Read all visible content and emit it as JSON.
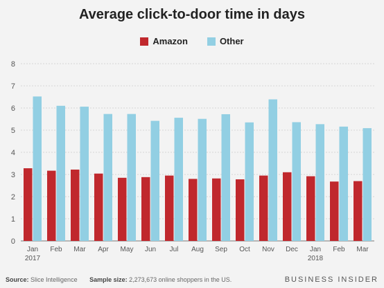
{
  "footer": {
    "source_label": "Source:",
    "source_value": "Slice Intelligence",
    "sample_label": "Sample size:",
    "sample_value": "2,273,673 online shoppers in the US.",
    "brand": "BUSINESS INSIDER"
  },
  "chart_data": {
    "type": "bar",
    "title": "Average click-to-door time in days",
    "xlabel": "",
    "ylabel": "",
    "ylim": [
      0,
      8
    ],
    "yticks": [
      0,
      1,
      2,
      3,
      4,
      5,
      6,
      7,
      8
    ],
    "grid": true,
    "legend_position": "top-center",
    "categories": [
      "Jan",
      "Feb",
      "Mar",
      "Apr",
      "May",
      "Jun",
      "Jul",
      "Aug",
      "Sep",
      "Oct",
      "Nov",
      "Dec",
      "Jan",
      "Feb",
      "Mar"
    ],
    "year_labels": {
      "0": "2017",
      "12": "2018"
    },
    "series": [
      {
        "name": "Amazon",
        "color": "#c0282d",
        "values": [
          3.28,
          3.17,
          3.22,
          3.04,
          2.85,
          2.88,
          2.95,
          2.8,
          2.82,
          2.78,
          2.95,
          3.1,
          2.92,
          2.68,
          2.7
        ]
      },
      {
        "name": "Other",
        "color": "#92cfe3",
        "values": [
          6.52,
          6.1,
          6.06,
          5.73,
          5.73,
          5.42,
          5.56,
          5.51,
          5.72,
          5.35,
          6.39,
          5.36,
          5.27,
          5.16,
          5.09
        ]
      }
    ]
  }
}
